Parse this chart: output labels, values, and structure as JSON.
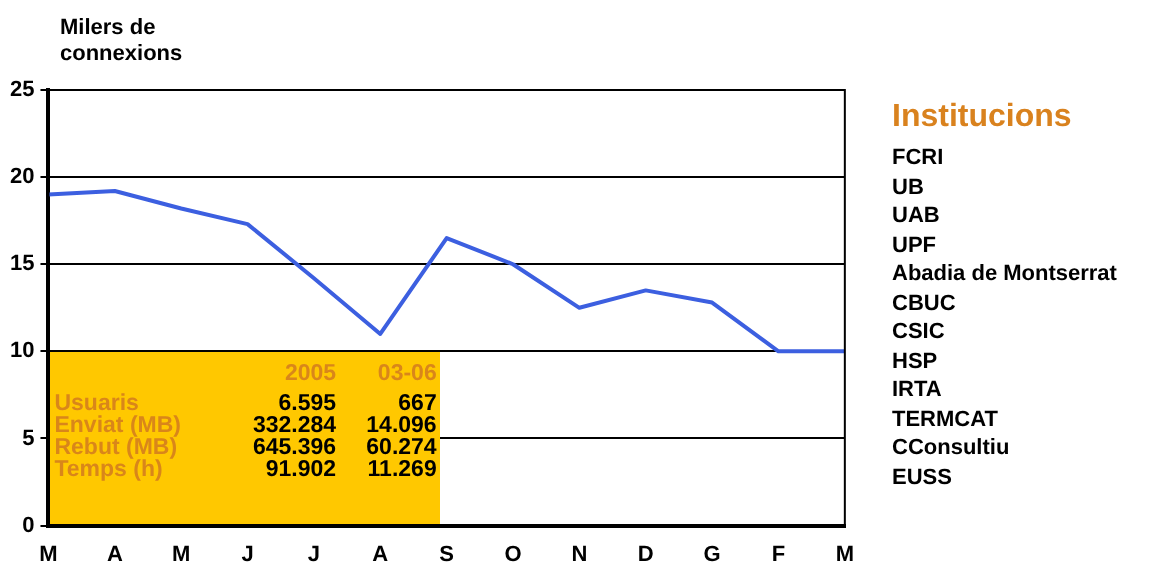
{
  "chart_data": [
    {
      "type": "line",
      "ylabel": "Milers de connexions",
      "categories": [
        "M",
        "A",
        "M",
        "J",
        "J",
        "A",
        "S",
        "O",
        "N",
        "D",
        "G",
        "F",
        "M"
      ],
      "series": [
        {
          "color": "#3c5fe0",
          "values": [
            19,
            19.2,
            18.2,
            17.3,
            14.2,
            11,
            16.5,
            15,
            12.5,
            13.5,
            12.8,
            10,
            10
          ]
        }
      ],
      "ylim": [
        0,
        25
      ],
      "yticks": [
        0,
        5,
        10,
        15,
        20,
        25
      ],
      "grid": "y",
      "legend": false,
      "marker": "none",
      "line_style": "solid",
      "annotations": [
        "2005",
        "03-06",
        "Usuaris",
        "6.595",
        "667",
        "Enviat (MB)",
        "332.284",
        "14.096",
        "Rebut (MB)",
        "645.396",
        "60.274",
        "Temps (h)",
        "91.902",
        "11.269"
      ]
    },
    {
      "type": "other",
      "title": "Institucions",
      "annotations": [
        "FCRI",
        "UB",
        "UAB",
        "UPF",
        "Abadia de Montserrat",
        "CBUC",
        "CSIC",
        "HSP",
        "IRTA",
        "TERMCAT",
        "CConsultiu",
        "EUSS"
      ]
    }
  ]
}
